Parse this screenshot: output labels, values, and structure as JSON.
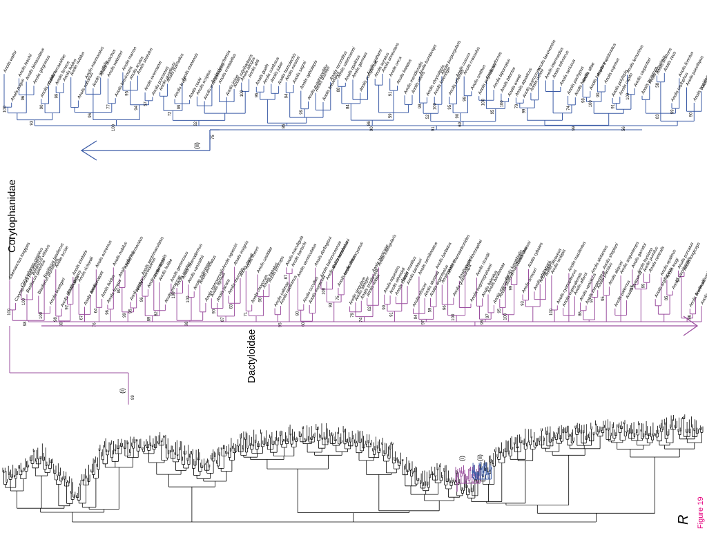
{
  "figure_label": "Figure 19",
  "tree_letter": "R",
  "families": {
    "upper": "Corytophanidae",
    "lower": "Dactyloidae"
  },
  "markers": {
    "i": "(i)",
    "ii": "(ii)"
  },
  "colors": {
    "blue_clade": "#3b5ba6",
    "purple_clade": "#9b4f9f",
    "black": "#000000",
    "figure_label": "#e6007e"
  },
  "purple_clade": {
    "taxa": [
      "Laemanctus longipes",
      "Corytophanes percarinatus",
      "Corytophanes cristatus",
      "Basiliscus galeritus",
      "Basiliscus vittatus",
      "Basiliscus plumifrons",
      "Basiliscus basiliscus",
      "Anolis boettgeri",
      "Anolis luciae",
      "Anolis bonairensis",
      "Anolis griseus",
      "Anolis trinitatis",
      "Anolis richardii",
      "Anolis aeneus",
      "Anolis roquet",
      "Anolis extremus",
      "Anolis lividus",
      "Anolis ferreus",
      "Anolis nubilus",
      "Anolis sabanus",
      "Anolis marmoratus",
      "Anolis pictus",
      "Anolis chlorocyanus",
      "Anolis ventrimaculatus",
      "Anolis aequatorialis",
      "Anolis fitchi",
      "Anolis huilae",
      "Anolis peraccae",
      "Anolis gemmosus",
      "Anolis nicefori",
      "Anolis heterodermus",
      "Anolis vanzolinii",
      "Anolis inderenae",
      "Anolis punctatus",
      "Anolis transversalis",
      "Anolis tigrinus",
      "Anolis jacare",
      "Anolis agassizi",
      "Anolis microtus",
      "Anolis insignis",
      "Anolis danieli",
      "Anolis fraseri",
      "Anolis chocorum",
      "Anolis casildae",
      "Anolis frenatus",
      "Anolis princeps",
      "Anolis calimae",
      "Anolis neblininus",
      "Anolis maculiguia",
      "Anolis bartschi",
      "Anolis vermiculatus",
      "Anolis occultus",
      "Anolis monticola",
      "Anolis darlingtoni",
      "Anolis bahorucoensis",
      "Anolis dolichocephalus",
      "Anolis hendersoni",
      "Anolis coelestinus",
      "Anolis chlorocyanus",
      "Anolis singularis",
      "Anolis aliniger",
      "Anolis smallwoodi",
      "Anolis noblei",
      "Anolis baracoae",
      "Anolis luteogularis",
      "Anolis equestris",
      "Anolis ethmoidi",
      "Anolis fowleri",
      "Anolis insolitus",
      "Anolis barbouri",
      "Anolis olssoni",
      "Anolis semilineatus",
      "Anolis alumina",
      "Anolis argenteolus",
      "Anolis barbatus",
      "Anolis porcus",
      "Anolis chamaeleonides",
      "Anolis guamuhaya",
      "Anolis cuvieri",
      "Anolis christophei",
      "Anolis eugenegrahami",
      "Anolis ricordii",
      "Anolis baleatus",
      "Anolis barahonae",
      "Anolis marcanoi",
      "Anolis strahmi",
      "Anolis longitibialis",
      "Anolis haetianus",
      "Anolis shrevei",
      "Anolis armouri",
      "Anolis cybotes",
      "Anolis whitemani",
      "Anolis lucius",
      "Anolis olivaceus",
      "Anolis isolepis",
      "Anolis cyanopleurus",
      "Anolis cupeyalensis",
      "Anolis macilentus",
      "Anolis alfaroi",
      "Anolis vanidicus",
      "Anolis inexpectatus",
      "Anolis alutaceus",
      "Anolis placidus",
      "Anolis sheplani",
      "Anolis alayoni",
      "Anolis paternus",
      "Anolis angusticeps",
      "Anolis guazuma",
      "Anolis garridoi",
      "Anolis loysiana",
      "Anolis pumilus",
      "Anolis centralis",
      "Anolis argillaceus",
      "Anolis opalinus",
      "Anolis krugi",
      "Anolis carolinensis",
      "Anolis porcatus",
      "Anolis longiceps",
      "Anolis brunneus",
      "Anolis allisoni",
      "Anolis smaragdinus"
    ],
    "support": [
      "100",
      "100",
      "100",
      "98",
      "92",
      "67",
      "64",
      "96",
      "89",
      "95",
      "96",
      "82",
      "100",
      "100",
      "90",
      "83",
      "71",
      "98",
      "87",
      "80",
      "100",
      "75",
      "79",
      "82",
      "99",
      "94",
      "59",
      "96",
      "97",
      "95",
      "99",
      "93",
      "100",
      "86",
      "97",
      "95",
      "98",
      "99",
      "85",
      "97",
      "86",
      "98",
      "80",
      "76",
      "99",
      "89",
      "98",
      "87",
      "95",
      "60",
      "93",
      "74",
      "91",
      "97",
      "100",
      "95",
      "100"
    ]
  },
  "blue_clade": {
    "taxa": [
      "Anolis wattsi",
      "Anolis pogus",
      "Anolis leachii",
      "Anolis bimaculatus",
      "Anolis gingivinus",
      "Anolis oculatus",
      "Anolis terraealtae",
      "Anolis ferreus",
      "Anolis lividus",
      "Anolis nubilus",
      "Anolis sabanus",
      "Anolis marmoratus",
      "Anolis caudalis",
      "Anolis distichus",
      "Anolis websteri",
      "Anolis brevirostris",
      "Anolis marron",
      "Anolis acutus",
      "Anolis stratulus",
      "Anolis evermanni",
      "Anolis poncensis",
      "Anolis gundlachi",
      "Anolis pulchellus",
      "Anolis krugi",
      "Anolis monensis",
      "Anolis cooki",
      "Anolis scriptus",
      "Anolis ernestwilliamsi",
      "Anolis desechensis",
      "Anolis cristatellus",
      "Anolis imias",
      "Anolis rubribarbaris",
      "Anolis allogus",
      "Anolis ahli",
      "Anolis guafe",
      "Anolis confusus",
      "Anolis jubar",
      "Anolis homolechis",
      "Anolis mestrei",
      "Anolis sagrei",
      "Anolis ophiolepis",
      "Anolis quadriocellifer",
      "Anolis bremeri",
      "Anolis lineatopus",
      "Anolis reconditus",
      "Anolis valencienni",
      "Anolis opalinus",
      "Anolis garmani",
      "Anolis conspersus",
      "Anolis grahami",
      "Anolis auratus",
      "Anolis annectens",
      "Anolis onca",
      "Anolis lineatus",
      "Anolis meridionalis",
      "Anolis nitens",
      "Anolis bombiceps",
      "Anolis chrysolepis",
      "Anolis loveridgei",
      "Anolis purpurgularis",
      "Anolis utilensis",
      "Anolis cusuco",
      "Anolis crassulus",
      "Anolis smithus",
      "Anolis polyrhachis",
      "Anolis uniformis",
      "Anolis biporcatus",
      "Anolis bitectus",
      "Anolis woodi",
      "Anolis aquaticus",
      "Anolis quercorum",
      "Anolis ortonii",
      "Anolis laeviventris",
      "Anolis intermedius",
      "Anolis isthmicus",
      "Anolis sericeus",
      "Anolis pachypus",
      "Anolis humilis",
      "Anolis altae",
      "Anolis kemptoni",
      "Anolis tropidonotus",
      "Anolis cupreus",
      "Anolis polylepis",
      "Anolis capito",
      "Anolis lemurinus",
      "Anolis carpenteri",
      "Anolis bicaorum",
      "Anolis lemurinus",
      "Anolis limifrons",
      "Anolis zeus",
      "Anolis oxylophus",
      "Anolis lionotus",
      "Anolis poecilopus",
      "Anolis tropidogaster",
      "Anolis trachyderma"
    ],
    "support": [
      "100",
      "96",
      "90",
      "99",
      "77",
      "95",
      "57",
      "99",
      "100",
      "96",
      "94",
      "99",
      "88",
      "91",
      "98",
      "100",
      "95",
      "98",
      "100",
      "100",
      "79",
      "74",
      "98",
      "99",
      "91",
      "100",
      "58",
      "99",
      "90",
      "96",
      "94",
      "72",
      "84",
      "59",
      "52",
      "90",
      "95",
      "99",
      "100",
      "83",
      "93",
      "92",
      "86",
      "86",
      "69",
      "100",
      "90",
      "99",
      "56",
      "91",
      "94",
      "92",
      "96",
      "97",
      "100",
      "100",
      "66",
      "99",
      "75"
    ]
  }
}
